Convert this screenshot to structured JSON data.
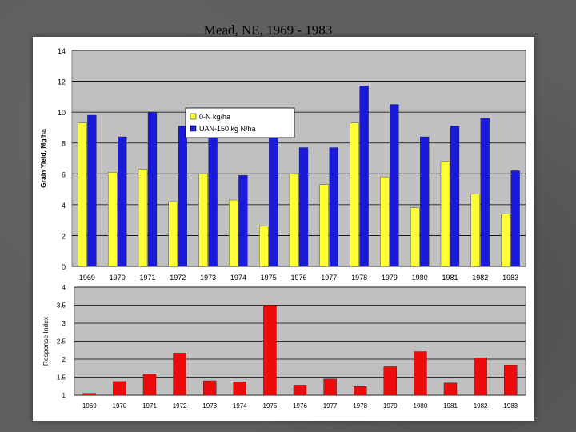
{
  "title": "Mead, NE, 1969 - 1983",
  "colors": {
    "zero_n": "#ffff33",
    "uan": "#1a1adb",
    "response": "#ee0a0a",
    "plot_bg": "#c0c0c0"
  },
  "chart_data": [
    {
      "type": "bar",
      "title": "",
      "xlabel": "",
      "ylabel": "Grain Yield, Mg/ha",
      "ylim": [
        0,
        14
      ],
      "yticks": [
        0,
        2,
        4,
        6,
        8,
        10,
        12,
        14
      ],
      "grid": true,
      "legend_position": "upper-left",
      "categories": [
        "1969",
        "1970",
        "1971",
        "1972",
        "1973",
        "1974",
        "1975",
        "1976",
        "1977",
        "1978",
        "1979",
        "1980",
        "1981",
        "1982",
        "1983"
      ],
      "series": [
        {
          "name": "0-N kg/ha",
          "color": "#ffff33",
          "values": [
            9.3,
            6.1,
            6.3,
            4.2,
            6.0,
            4.3,
            2.6,
            6.0,
            5.3,
            9.3,
            5.8,
            3.8,
            6.8,
            4.7,
            3.4
          ]
        },
        {
          "name": "UAN-150 kg N/ha",
          "color": "#1a1adb",
          "values": [
            9.8,
            8.4,
            10.0,
            9.1,
            8.4,
            5.9,
            9.1,
            7.7,
            7.7,
            11.7,
            10.5,
            8.4,
            9.1,
            9.6,
            6.2
          ]
        }
      ]
    },
    {
      "type": "bar",
      "title": "",
      "xlabel": "",
      "ylabel": "Response Index",
      "ylim": [
        1,
        4
      ],
      "yticks": [
        "1",
        "1.5",
        "2",
        "2.5",
        "3",
        "3.5",
        "4"
      ],
      "ytick_labels": [
        "1",
        "1.5",
        "2",
        "2.5",
        "3",
        "3.5",
        "4"
      ],
      "grid": true,
      "categories": [
        "1969",
        "1970",
        "1971",
        "1972",
        "1973",
        "1974",
        "1975",
        "1976",
        "1977",
        "1978",
        "1979",
        "1980",
        "1981",
        "1982",
        "1983"
      ],
      "series": [
        {
          "name": "",
          "color": "#ee0a0a",
          "values": [
            1.05,
            1.38,
            1.59,
            2.17,
            1.4,
            1.37,
            3.5,
            1.28,
            1.45,
            1.24,
            1.79,
            2.21,
            1.34,
            2.04,
            1.84
          ]
        }
      ]
    }
  ]
}
